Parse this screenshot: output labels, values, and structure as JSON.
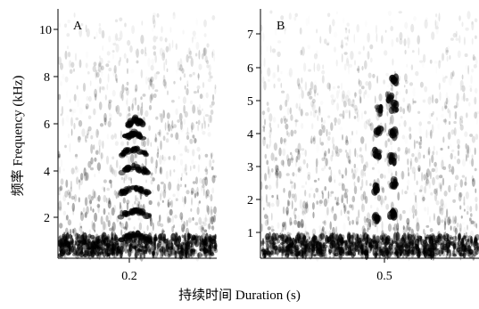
{
  "figure": {
    "ylabel": "频率 Frequency (kHz)",
    "xlabel": "持续时间 Duration (s)"
  },
  "panels": [
    {
      "label": "A",
      "yticks": [
        "2",
        "4",
        "6",
        "8",
        "10"
      ],
      "xticks": [
        "0.2"
      ]
    },
    {
      "label": "B",
      "yticks": [
        "1",
        "2",
        "3",
        "4",
        "5",
        "6",
        "7"
      ],
      "xticks": [
        "0.5"
      ]
    }
  ]
}
